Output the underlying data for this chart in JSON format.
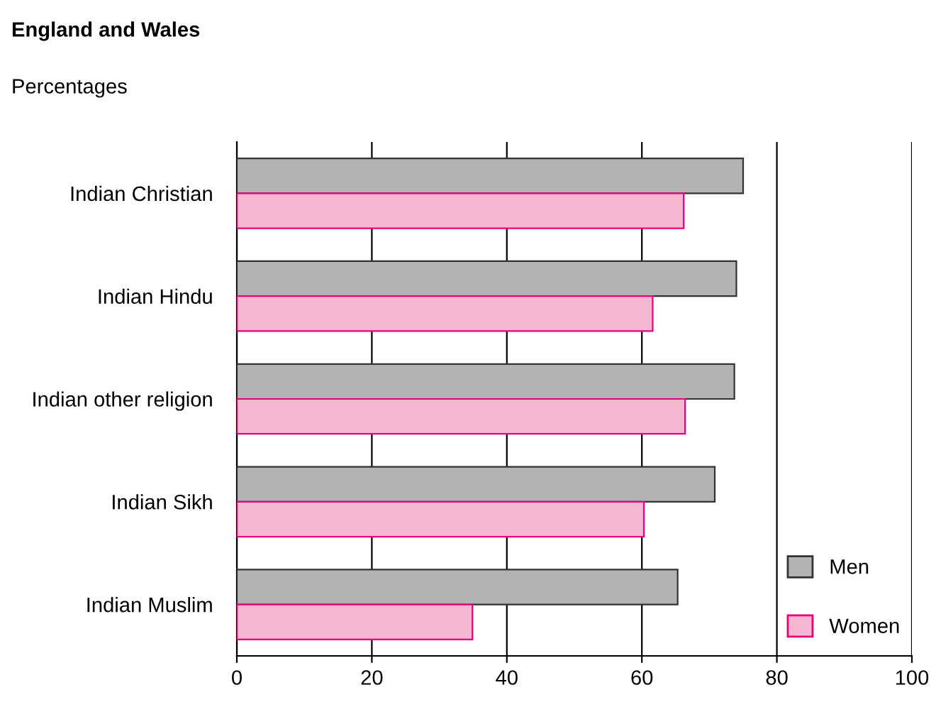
{
  "chart_data": {
    "type": "bar",
    "orientation": "horizontal",
    "title": "England and Wales",
    "subtitle": "Percentages",
    "categories": [
      "Indian Christian",
      "Indian Hindu",
      "Indian other religion",
      "Indian Sikh",
      "Indian Muslim"
    ],
    "series": [
      {
        "name": "Men",
        "color": "#b3b3b3",
        "values": [
          75.0,
          74.0,
          73.7,
          70.8,
          65.3
        ]
      },
      {
        "name": "Women",
        "color": "#f4b6d0",
        "values": [
          66.2,
          61.6,
          66.4,
          60.3,
          34.9
        ]
      }
    ],
    "xlim": [
      0,
      100
    ],
    "xticks": [
      0,
      20,
      40,
      60,
      80,
      100
    ],
    "grid": "x",
    "legend": "bottom right"
  }
}
